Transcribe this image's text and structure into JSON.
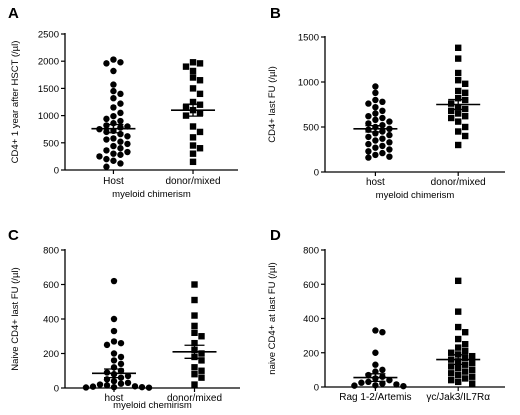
{
  "chart_data": [
    {
      "panel": "A",
      "type": "scatter",
      "marker": "circle",
      "ylabel": "CD4+ 1 year after HSCT (/µl)",
      "xlabel": "myeloid chimerism",
      "categories": [
        "Host",
        "donor/mixed"
      ],
      "ylim": [
        0,
        2500
      ],
      "yticks": [
        0,
        500,
        1000,
        1500,
        2000,
        2500
      ],
      "groups": [
        {
          "category": "Host",
          "mean": 760,
          "sem": 75,
          "values": [
            2030,
            1980,
            1960,
            1820,
            1570,
            1450,
            1400,
            1320,
            1220,
            1150,
            1050,
            990,
            940,
            900,
            860,
            820,
            800,
            780,
            750,
            720,
            700,
            660,
            620,
            580,
            560,
            520,
            480,
            440,
            400,
            360,
            330,
            300,
            280,
            250,
            200,
            170,
            120,
            60
          ]
        },
        {
          "category": "donor/mixed",
          "mean": 1100,
          "sem": 110,
          "values": [
            1980,
            1960,
            1900,
            1820,
            1700,
            1650,
            1500,
            1400,
            1250,
            1200,
            1150,
            1100,
            1050,
            1000,
            800,
            700,
            600,
            450,
            400,
            300,
            150
          ]
        }
      ]
    },
    {
      "panel": "B",
      "type": "scatter",
      "marker": "circle",
      "ylabel": "CD4+ last FU (/µl)",
      "xlabel": "myeloid chimerism",
      "categories": [
        "host",
        "donor/mixed"
      ],
      "ylim": [
        0,
        1500
      ],
      "yticks": [
        0,
        500,
        1000,
        1500
      ],
      "groups": [
        {
          "category": "host",
          "mean": 480,
          "sem": 35,
          "values": [
            950,
            880,
            800,
            780,
            760,
            720,
            680,
            650,
            620,
            600,
            580,
            560,
            540,
            520,
            500,
            480,
            470,
            450,
            430,
            410,
            390,
            370,
            350,
            330,
            310,
            290,
            270,
            250,
            230,
            210,
            190,
            170,
            160
          ]
        },
        {
          "category": "donor/mixed",
          "mean": 750,
          "sem": 55,
          "values": [
            1380,
            1260,
            1100,
            1020,
            980,
            900,
            880,
            820,
            800,
            760,
            720,
            700,
            680,
            650,
            620,
            600,
            560,
            500,
            450,
            400,
            300
          ]
        }
      ]
    },
    {
      "panel": "C",
      "type": "scatter",
      "marker": "circle",
      "ylabel": "Naive CD4+ last FU (/µl)",
      "xlabel": "myeloid chemirism",
      "categories": [
        "host",
        "donor/mixed"
      ],
      "ylim": [
        0,
        800
      ],
      "yticks": [
        0,
        200,
        400,
        600,
        800
      ],
      "groups": [
        {
          "category": "host",
          "mean": 85,
          "sem": 25,
          "values": [
            620,
            400,
            330,
            270,
            260,
            250,
            200,
            180,
            160,
            140,
            120,
            100,
            90,
            80,
            70,
            60,
            50,
            40,
            30,
            25,
            20,
            15,
            10,
            8,
            5,
            5,
            3,
            2
          ]
        },
        {
          "category": "donor/mixed",
          "mean": 210,
          "sem": 38,
          "values": [
            600,
            510,
            420,
            360,
            320,
            300,
            260,
            220,
            200,
            180,
            160,
            120,
            100,
            80,
            60,
            20
          ]
        }
      ]
    },
    {
      "panel": "D",
      "type": "scatter",
      "marker": "circle",
      "ylabel": "naive CD4+ at last FU (/µl)",
      "xlabel": "",
      "categories": [
        "Rag 1-2/Artemis",
        "γc/Jak3/IL7Rα"
      ],
      "ylim": [
        0,
        800
      ],
      "yticks": [
        0,
        200,
        400,
        600,
        800
      ],
      "groups": [
        {
          "category": "Rag 1-2/Artemis",
          "mean": 55,
          "sem": 22,
          "values": [
            330,
            320,
            200,
            130,
            100,
            90,
            70,
            60,
            50,
            40,
            30,
            25,
            20,
            15,
            10,
            8,
            5
          ]
        },
        {
          "category": "γc/Jak3/IL7Rα",
          "mean": 160,
          "sem": 28,
          "values": [
            620,
            440,
            350,
            320,
            280,
            250,
            230,
            210,
            200,
            190,
            180,
            170,
            160,
            150,
            140,
            130,
            120,
            110,
            100,
            90,
            80,
            70,
            60,
            50,
            40,
            30,
            20
          ]
        }
      ]
    }
  ]
}
